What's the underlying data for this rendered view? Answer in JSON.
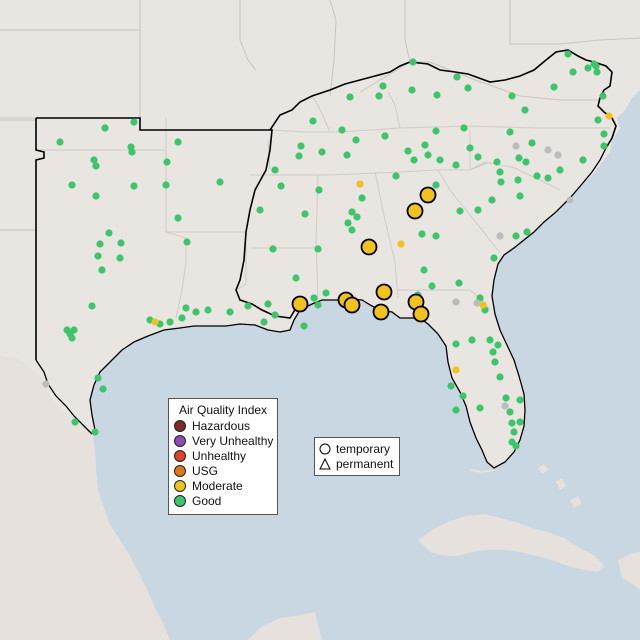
{
  "legend": {
    "title": "Air Quality Index",
    "items": [
      {
        "label": "Hazardous",
        "color": "#7e2a2a"
      },
      {
        "label": "Very Unhealthy",
        "color": "#8e4cb0"
      },
      {
        "label": "Unhealthy",
        "color": "#e0412b"
      },
      {
        "label": "USG",
        "color": "#e2761b"
      },
      {
        "label": "Moderate",
        "color": "#f1c21b"
      },
      {
        "label": "Good",
        "color": "#3cc56a"
      }
    ]
  },
  "shape_legend": {
    "temporary": "temporary",
    "permanent": "permanent"
  },
  "colors": {
    "water": "#c9d7e2",
    "land": "#e9e5e1",
    "border": "#000000",
    "unknown": "#bcbcbc"
  },
  "marker_style": "circle-outline-black-for-large-moderate"
}
